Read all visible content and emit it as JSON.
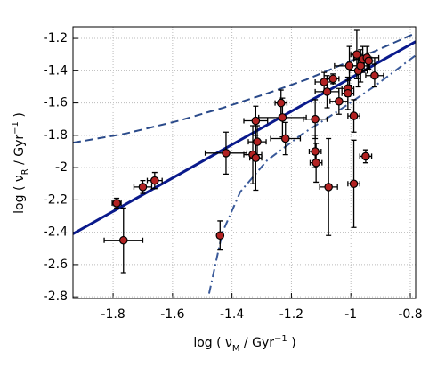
{
  "chart_data": {
    "type": "scatter",
    "xlabel": [
      "log ( ν",
      "M",
      " / Gyr",
      "−1",
      " )"
    ],
    "ylabel": [
      "log ( ν",
      "R",
      " / Gyr",
      "−1",
      " )"
    ],
    "xlim": [
      -1.935,
      -0.782
    ],
    "ylim": [
      -2.81,
      -1.128
    ],
    "xticks": [
      -1.8,
      -1.6,
      -1.4,
      -1.2,
      -1,
      -0.8
    ],
    "yticks": [
      -1.2,
      -1.4,
      -1.6,
      -1.8,
      -2,
      -2.2,
      -2.4,
      -2.6,
      -2.8
    ],
    "grid": true,
    "points": {
      "color": "#b22222",
      "x": [
        -1.788,
        -1.765,
        -1.7,
        -1.66,
        -1.44,
        -1.42,
        -1.32,
        -1.33,
        -1.32,
        -1.315,
        -1.235,
        -1.23,
        -1.22,
        -1.12,
        -1.12,
        -1.117,
        -1.075,
        -1.09,
        -1.08,
        -1.06,
        -1.04,
        -1.01,
        -1.01,
        -1.005,
        -0.98,
        -0.975,
        -0.967,
        -0.96,
        -0.946,
        -0.94,
        -0.92,
        -0.99,
        -0.99,
        -0.95
      ],
      "values": [
        -2.22,
        -2.45,
        -2.12,
        -2.08,
        -2.42,
        -1.91,
        -1.71,
        -1.92,
        -1.94,
        -1.84,
        -1.6,
        -1.69,
        -1.82,
        -1.7,
        -1.9,
        -1.97,
        -2.12,
        -1.47,
        -1.53,
        -1.45,
        -1.59,
        -1.51,
        -1.54,
        -1.37,
        -1.3,
        -1.4,
        -1.37,
        -1.33,
        -1.32,
        -1.34,
        -1.43,
        -1.68,
        -2.1,
        -1.93
      ],
      "xerr": [
        0.015,
        0.065,
        0.03,
        0.025,
        0.01,
        0.07,
        0.04,
        0.03,
        0.02,
        0.03,
        0.02,
        0.08,
        0.05,
        0.04,
        0.02,
        0.02,
        0.03,
        0.03,
        0.04,
        0.02,
        0.03,
        0.02,
        0.02,
        0.05,
        0.02,
        0.03,
        0.03,
        0.03,
        0.04,
        0.02,
        0.03,
        0.02,
        0.02,
        0.02
      ],
      "yerr": [
        0.03,
        0.2,
        0.04,
        0.05,
        0.09,
        0.13,
        0.09,
        0.18,
        0.2,
        0.1,
        0.08,
        0.12,
        0.1,
        0.12,
        0.1,
        0.12,
        0.3,
        0.06,
        0.1,
        0.03,
        0.08,
        0.05,
        0.1,
        0.12,
        0.15,
        0.1,
        0.1,
        0.08,
        0.07,
        0.05,
        0.07,
        0.1,
        0.27,
        0.04
      ]
    },
    "lines": [
      {
        "style": "solid",
        "color": "#0a1a8c",
        "x": [
          -1.935,
          -0.782
        ],
        "values": [
          -2.41,
          -1.22
        ]
      },
      {
        "style": "dashed",
        "color": "#2a4a8a",
        "x": [
          -1.935,
          -1.76,
          -1.58,
          -1.43,
          -1.28,
          -1.15,
          -1.04,
          -0.92,
          -0.782
        ],
        "values": [
          -1.846,
          -1.79,
          -1.71,
          -1.63,
          -1.54,
          -1.455,
          -1.37,
          -1.28,
          -1.167
        ]
      },
      {
        "style": "dashdot",
        "color": "#3a5a9a",
        "x": [
          -1.477,
          -1.45,
          -1.432,
          -1.372,
          -1.282,
          -1.162,
          -1.043,
          -0.923,
          -0.782
        ],
        "values": [
          -2.78,
          -2.55,
          -2.4,
          -2.15,
          -1.956,
          -1.79,
          -1.65,
          -1.5,
          -1.305
        ]
      }
    ]
  }
}
